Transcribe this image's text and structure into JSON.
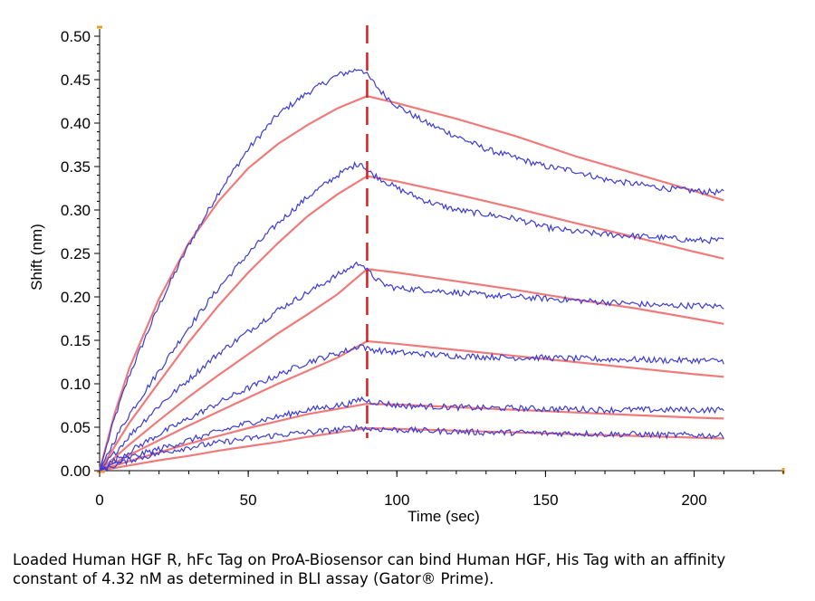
{
  "chart_data": {
    "type": "line",
    "xlabel": "Time (sec)",
    "ylabel": "Shift (nm)",
    "xlim": [
      0,
      230
    ],
    "ylim": [
      0,
      0.5
    ],
    "x_ticks": [
      0,
      50,
      100,
      150,
      200
    ],
    "y_ticks": [
      0.0,
      0.05,
      0.1,
      0.15,
      0.2,
      0.25,
      0.3,
      0.35,
      0.4,
      0.45,
      0.5
    ],
    "y_tick_labels": [
      "0.00",
      "0.05",
      "0.10",
      "0.15",
      "0.20",
      "0.25",
      "0.30",
      "0.35",
      "0.40",
      "0.45",
      "0.50"
    ],
    "x_tick_labels": [
      "0",
      "50",
      "100",
      "150",
      "200"
    ],
    "dissociation_start_x": 90,
    "grid": false,
    "measured_color": "#3b3bd6",
    "fit_color": "#f07a7a",
    "marker_color": "#d42020",
    "curves": [
      {
        "measured": {
          "x": [
            0,
            5,
            10,
            20,
            30,
            40,
            50,
            60,
            70,
            80,
            85,
            88,
            90,
            95,
            100,
            110,
            120,
            130,
            140,
            150,
            160,
            170,
            180,
            190,
            200,
            210
          ],
          "y": [
            0,
            0.06,
            0.11,
            0.19,
            0.26,
            0.32,
            0.37,
            0.41,
            0.435,
            0.455,
            0.46,
            0.463,
            0.455,
            0.435,
            0.42,
            0.4,
            0.385,
            0.37,
            0.36,
            0.35,
            0.345,
            0.335,
            0.33,
            0.325,
            0.322,
            0.32
          ]
        },
        "fit": {
          "x": [
            0,
            5,
            10,
            20,
            30,
            40,
            50,
            60,
            70,
            80,
            90,
            100,
            120,
            140,
            160,
            180,
            200,
            210
          ],
          "y": [
            0,
            0.065,
            0.118,
            0.198,
            0.262,
            0.31,
            0.348,
            0.376,
            0.398,
            0.417,
            0.431,
            0.423,
            0.405,
            0.385,
            0.362,
            0.342,
            0.322,
            0.311
          ]
        }
      },
      {
        "measured": {
          "x": [
            0,
            5,
            10,
            20,
            30,
            40,
            50,
            60,
            70,
            80,
            85,
            88,
            90,
            95,
            100,
            110,
            120,
            130,
            140,
            150,
            160,
            170,
            180,
            190,
            200,
            210
          ],
          "y": [
            0,
            0.035,
            0.065,
            0.115,
            0.165,
            0.21,
            0.25,
            0.285,
            0.315,
            0.34,
            0.35,
            0.355,
            0.345,
            0.335,
            0.325,
            0.31,
            0.3,
            0.295,
            0.29,
            0.28,
            0.275,
            0.272,
            0.27,
            0.268,
            0.265,
            0.265
          ]
        },
        "fit": {
          "x": [
            0,
            10,
            20,
            30,
            40,
            50,
            60,
            70,
            80,
            90,
            100,
            120,
            140,
            160,
            180,
            200,
            210
          ],
          "y": [
            0,
            0.055,
            0.102,
            0.148,
            0.19,
            0.228,
            0.262,
            0.293,
            0.318,
            0.339,
            0.333,
            0.318,
            0.302,
            0.285,
            0.269,
            0.252,
            0.244
          ]
        }
      },
      {
        "measured": {
          "x": [
            0,
            5,
            10,
            20,
            30,
            40,
            50,
            60,
            70,
            80,
            85,
            88,
            90,
            95,
            100,
            110,
            120,
            130,
            140,
            150,
            160,
            170,
            180,
            190,
            200,
            210
          ],
          "y": [
            0,
            0.02,
            0.04,
            0.075,
            0.105,
            0.135,
            0.16,
            0.185,
            0.205,
            0.225,
            0.235,
            0.24,
            0.23,
            0.215,
            0.21,
            0.208,
            0.205,
            0.202,
            0.2,
            0.198,
            0.196,
            0.194,
            0.192,
            0.19,
            0.19,
            0.189
          ]
        },
        "fit": {
          "x": [
            0,
            10,
            20,
            30,
            40,
            50,
            60,
            70,
            80,
            90,
            100,
            120,
            140,
            160,
            180,
            200,
            210
          ],
          "y": [
            0,
            0.03,
            0.058,
            0.085,
            0.11,
            0.134,
            0.158,
            0.18,
            0.203,
            0.232,
            0.228,
            0.218,
            0.208,
            0.197,
            0.187,
            0.175,
            0.169
          ]
        }
      },
      {
        "measured": {
          "x": [
            0,
            5,
            10,
            20,
            30,
            40,
            50,
            60,
            70,
            80,
            85,
            88,
            90,
            95,
            100,
            110,
            120,
            130,
            140,
            150,
            160,
            170,
            180,
            190,
            200,
            210
          ],
          "y": [
            0,
            0.012,
            0.022,
            0.042,
            0.06,
            0.078,
            0.095,
            0.11,
            0.125,
            0.135,
            0.14,
            0.145,
            0.14,
            0.138,
            0.136,
            0.134,
            0.132,
            0.131,
            0.13,
            0.13,
            0.129,
            0.128,
            0.128,
            0.127,
            0.127,
            0.126
          ]
        },
        "fit": {
          "x": [
            0,
            10,
            20,
            30,
            40,
            50,
            60,
            70,
            80,
            90,
            100,
            120,
            140,
            160,
            180,
            200,
            210
          ],
          "y": [
            0,
            0.018,
            0.035,
            0.052,
            0.068,
            0.084,
            0.1,
            0.115,
            0.13,
            0.149,
            0.146,
            0.139,
            0.132,
            0.125,
            0.118,
            0.111,
            0.108
          ]
        }
      },
      {
        "measured": {
          "x": [
            0,
            5,
            10,
            20,
            30,
            40,
            50,
            60,
            70,
            80,
            85,
            88,
            90,
            95,
            100,
            110,
            120,
            130,
            140,
            150,
            160,
            170,
            180,
            190,
            200,
            210
          ],
          "y": [
            0,
            0.008,
            0.015,
            0.025,
            0.035,
            0.045,
            0.055,
            0.062,
            0.07,
            0.075,
            0.078,
            0.083,
            0.08,
            0.078,
            0.075,
            0.074,
            0.073,
            0.072,
            0.072,
            0.071,
            0.071,
            0.07,
            0.07,
            0.07,
            0.07,
            0.07
          ]
        },
        "fit": {
          "x": [
            0,
            10,
            20,
            30,
            40,
            50,
            60,
            70,
            80,
            90,
            100,
            120,
            140,
            160,
            180,
            200,
            210
          ],
          "y": [
            0,
            0.011,
            0.021,
            0.031,
            0.04,
            0.049,
            0.057,
            0.065,
            0.071,
            0.077,
            0.076,
            0.073,
            0.07,
            0.067,
            0.064,
            0.061,
            0.06
          ]
        }
      },
      {
        "measured": {
          "x": [
            0,
            5,
            10,
            20,
            30,
            40,
            50,
            60,
            70,
            80,
            85,
            88,
            90,
            95,
            100,
            110,
            120,
            130,
            140,
            150,
            160,
            170,
            180,
            190,
            200,
            210
          ],
          "y": [
            0,
            0.006,
            0.012,
            0.02,
            0.027,
            0.032,
            0.037,
            0.041,
            0.044,
            0.047,
            0.049,
            0.05,
            0.048,
            0.048,
            0.047,
            0.046,
            0.045,
            0.044,
            0.044,
            0.043,
            0.043,
            0.042,
            0.042,
            0.041,
            0.041,
            0.04
          ]
        },
        "fit": {
          "x": [
            0,
            10,
            20,
            30,
            40,
            50,
            60,
            70,
            80,
            90,
            100,
            120,
            140,
            160,
            180,
            200,
            210
          ],
          "y": [
            0,
            0.006,
            0.012,
            0.017,
            0.023,
            0.028,
            0.033,
            0.039,
            0.044,
            0.049,
            0.048,
            0.046,
            0.044,
            0.042,
            0.04,
            0.038,
            0.037
          ]
        }
      }
    ]
  },
  "caption": "Loaded Human HGF R, hFc Tag on ProA-Biosensor can bind Human HGF, His Tag with an affinity constant of 4.32 nM as determined in BLI assay (Gator® Prime)."
}
